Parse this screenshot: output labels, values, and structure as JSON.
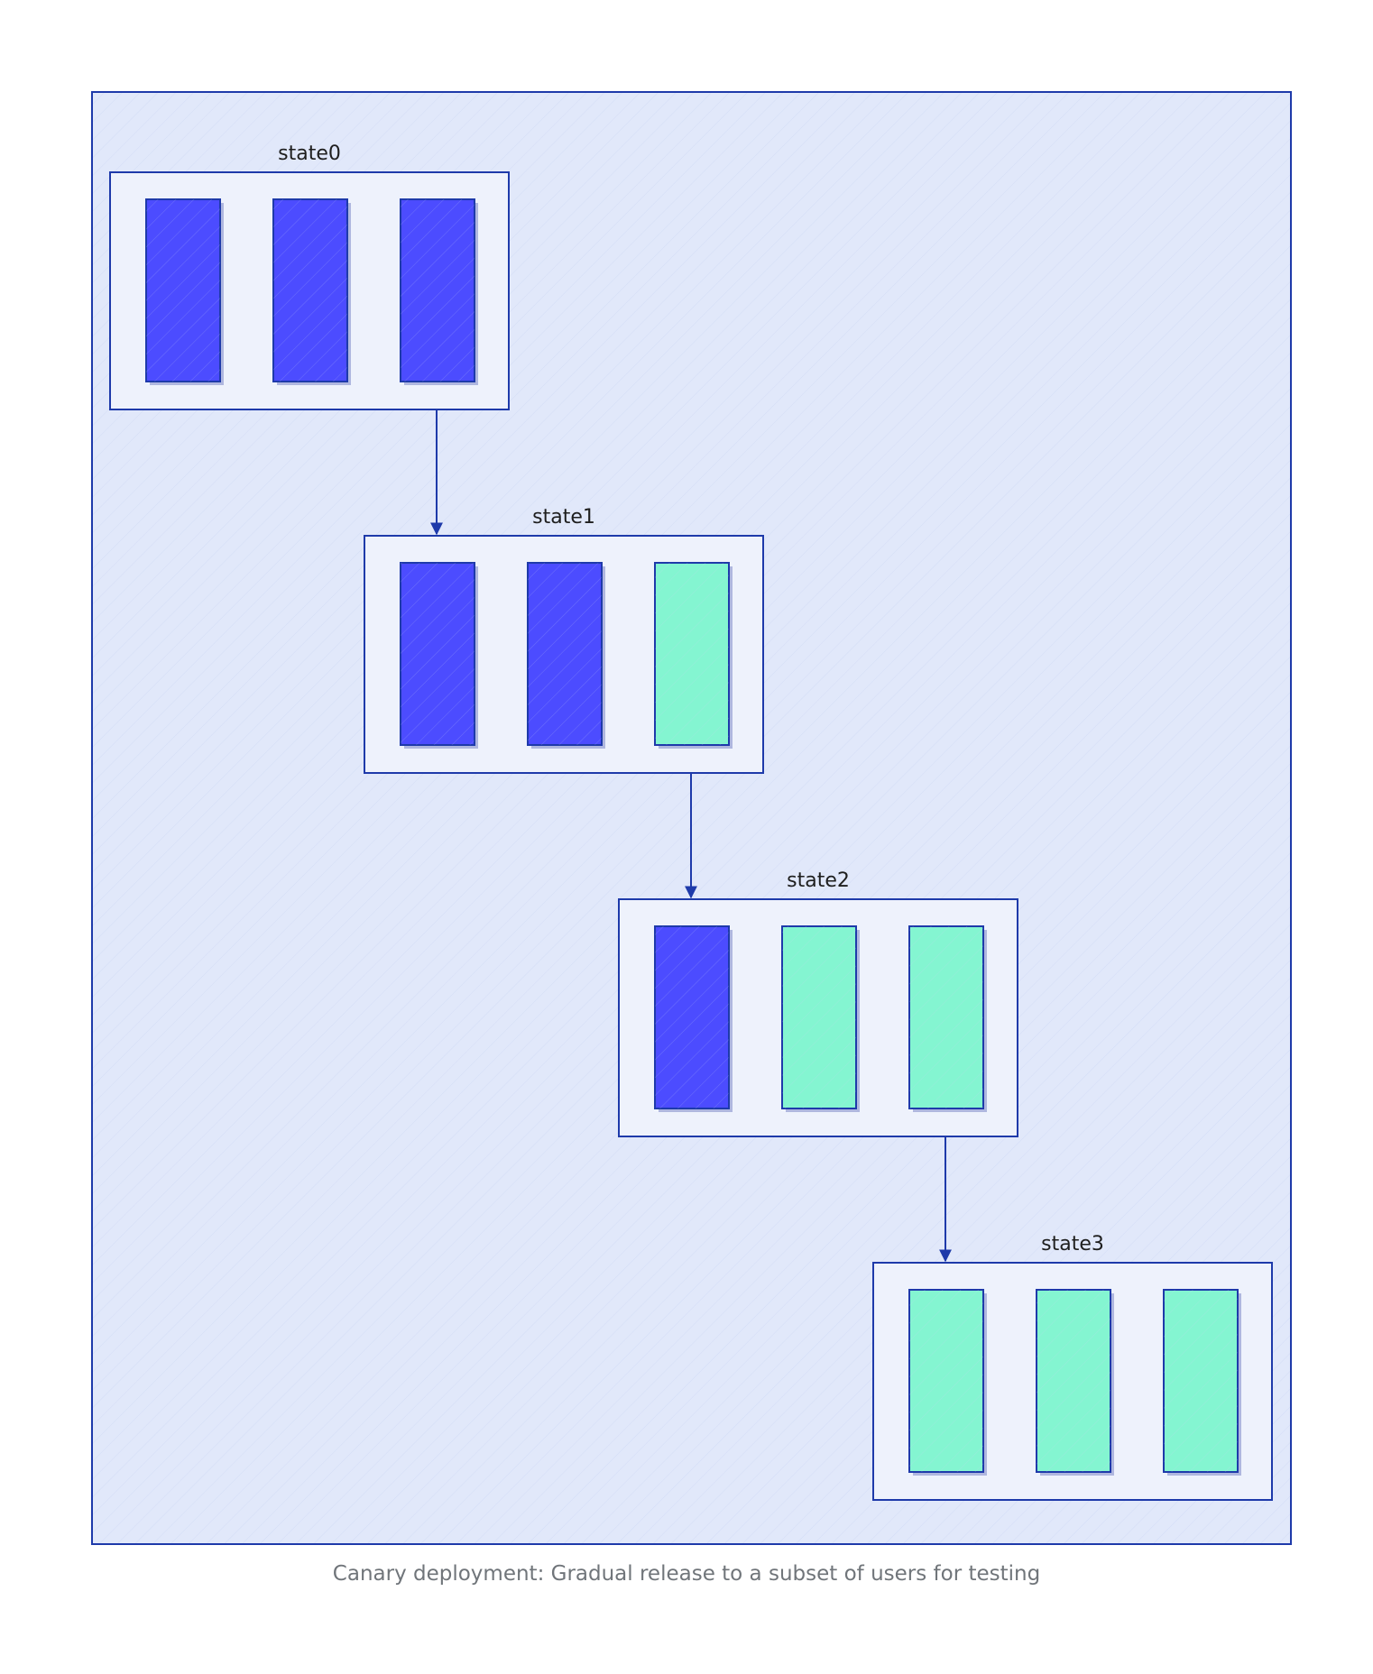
{
  "diagram": {
    "caption": "Canary deployment: Gradual release to a subset of users for testing",
    "colors": {
      "background": "#e1e8fa",
      "stroke": "#1e3aaa",
      "state_fill": "#eef2fc",
      "old_version": "#4c4cff",
      "new_version": "#84f5d1"
    },
    "states": [
      {
        "label": "state0",
        "replicas": [
          "old",
          "old",
          "old"
        ]
      },
      {
        "label": "state1",
        "replicas": [
          "old",
          "old",
          "new"
        ]
      },
      {
        "label": "state2",
        "replicas": [
          "old",
          "new",
          "new"
        ]
      },
      {
        "label": "state3",
        "replicas": [
          "new",
          "new",
          "new"
        ]
      }
    ]
  }
}
